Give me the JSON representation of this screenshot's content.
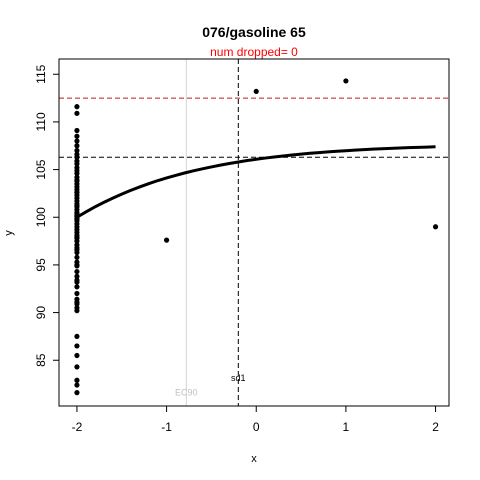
{
  "chart_data": {
    "type": "scatter",
    "title": "076/gasoline 65",
    "subtitle": "num dropped= 0",
    "xlabel": "x",
    "ylabel": "y",
    "xlim": [
      -2.2,
      2.15
    ],
    "ylim": [
      80.2,
      116.6
    ],
    "x_ticks": [
      -2,
      -1,
      0,
      1,
      2
    ],
    "y_ticks": [
      85,
      90,
      95,
      100,
      105,
      110,
      115
    ],
    "grid": false,
    "legend": "none",
    "points": {
      "x": [
        -2,
        -2,
        -2,
        -2,
        -2,
        -2,
        -2,
        -2,
        -2,
        -2,
        -2,
        -2,
        -2,
        -2,
        -2,
        -2,
        -2,
        -2,
        -2,
        -2,
        -2,
        -2,
        -2,
        -2,
        -2,
        -2,
        -2,
        -2,
        -2,
        -2,
        -2,
        -2,
        -2,
        -2,
        -2,
        -2,
        -2,
        -2,
        -2,
        -2,
        -2,
        -2,
        -2,
        -2,
        -2,
        -2,
        -2,
        -2,
        -2,
        -2,
        -2,
        -2,
        -2,
        -2,
        -2,
        -2,
        -2,
        -2,
        -2,
        -2,
        -2,
        -2,
        -2,
        -2,
        -2,
        -2,
        -2,
        -2,
        -2,
        -2,
        -1,
        0,
        1,
        2
      ],
      "y": [
        111.6,
        110.9,
        109.1,
        108.5,
        108.0,
        107.5,
        107.0,
        106.6,
        106.3,
        105.9,
        105.6,
        105.2,
        104.9,
        104.6,
        104.2,
        103.8,
        103.5,
        103.2,
        102.9,
        102.6,
        102.3,
        102.0,
        101.7,
        101.4,
        101.1,
        100.8,
        100.5,
        100.2,
        99.9,
        99.6,
        99.3,
        99.0,
        98.7,
        98.4,
        98.1,
        97.8,
        97.5,
        97.1,
        96.8,
        96.3,
        95.8,
        95.3,
        94.9,
        94.3,
        93.8,
        93.2,
        92.7,
        92.0,
        91.4,
        90.9,
        90.2,
        87.5,
        86.5,
        85.5,
        84.3,
        82.9,
        82.4,
        81.6,
        100.1,
        99.8,
        100.4,
        101.2,
        102.6,
        103.9,
        97.9,
        96.6,
        95.0,
        93.4,
        91.1,
        90.5,
        97.6,
        113.2,
        114.3,
        99.0
      ]
    },
    "fit_curve": {
      "x": [
        -2.0,
        -1.9,
        -1.8,
        -1.7,
        -1.6,
        -1.5,
        -1.4,
        -1.3,
        -1.2,
        -1.1,
        -1.0,
        -0.9,
        -0.8,
        -0.7,
        -0.6,
        -0.5,
        -0.4,
        -0.3,
        -0.2,
        -0.1,
        0.0,
        0.1,
        0.2,
        0.3,
        0.4,
        0.5,
        0.6,
        0.7,
        0.8,
        0.9,
        1.0,
        1.1,
        1.2,
        1.3,
        1.4,
        1.5,
        1.6,
        1.7,
        1.8,
        1.9,
        2.0
      ],
      "y": [
        100.0,
        100.56,
        101.08,
        101.56,
        102.01,
        102.43,
        102.82,
        103.18,
        103.52,
        103.84,
        104.12,
        104.39,
        104.64,
        104.87,
        105.08,
        105.28,
        105.47,
        105.64,
        105.8,
        105.95,
        106.08,
        106.21,
        106.32,
        106.43,
        106.53,
        106.62,
        106.71,
        106.78,
        106.86,
        106.92,
        106.98,
        107.04,
        107.09,
        107.14,
        107.19,
        107.23,
        107.27,
        107.3,
        107.33,
        107.36,
        107.39
      ]
    },
    "reference_lines": [
      {
        "orientation": "horizontal",
        "value": 112.5,
        "color": "#b22222",
        "style": "dashed"
      },
      {
        "orientation": "horizontal",
        "value": 106.3,
        "color": "#000000",
        "style": "dashed"
      },
      {
        "orientation": "vertical",
        "value": -0.2,
        "color": "#000000",
        "style": "dashed"
      },
      {
        "orientation": "vertical",
        "value": -0.78,
        "color": "#d3d3d3",
        "style": "solid"
      }
    ],
    "annotations": [
      {
        "text": "sd1",
        "x": -0.2,
        "y": 82.8,
        "color": "#000000"
      },
      {
        "text": "EC90",
        "x": -0.78,
        "y": 81.3,
        "color": "#c0c0c0"
      }
    ],
    "colors": {
      "points": "#000000",
      "curve": "#000000",
      "subtitle": "#ff0000"
    }
  }
}
